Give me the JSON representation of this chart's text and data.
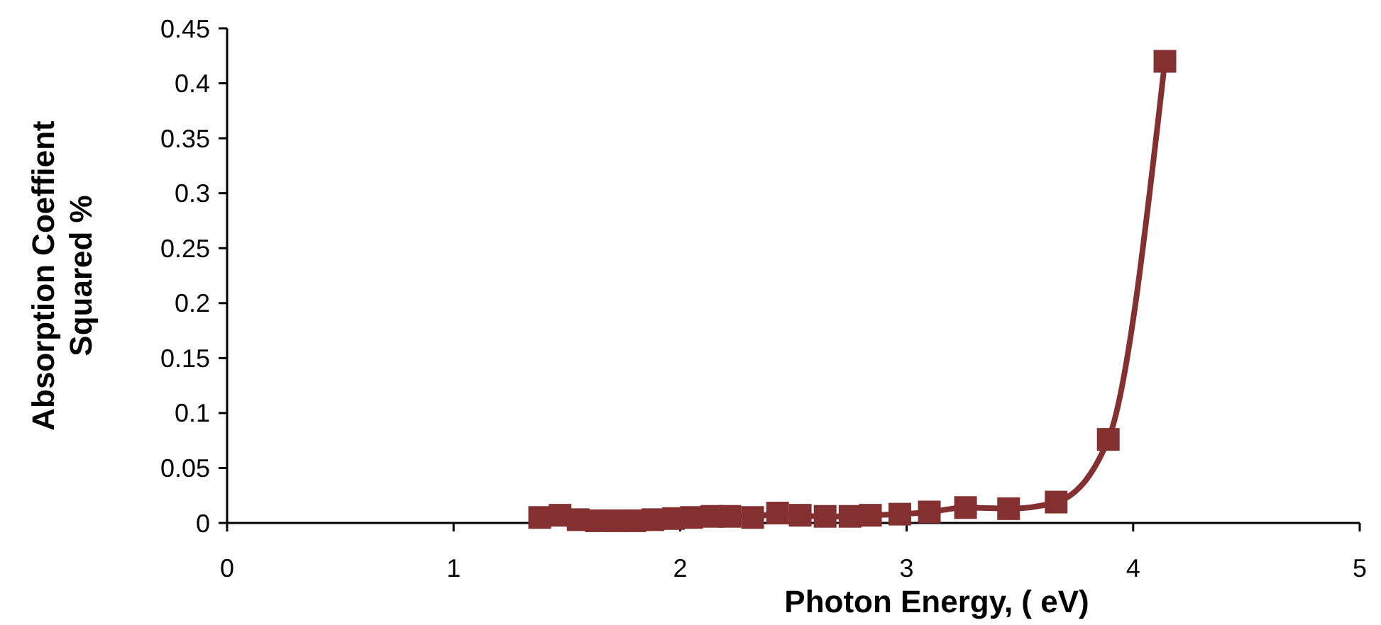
{
  "chart_data": {
    "type": "line",
    "xlabel": "Photon Energy, ( eV)",
    "ylabel": "Absorption Coeffient Squared %",
    "x": [
      1.38,
      1.47,
      1.55,
      1.63,
      1.72,
      1.8,
      1.88,
      1.97,
      2.05,
      2.14,
      2.22,
      2.32,
      2.43,
      2.53,
      2.64,
      2.75,
      2.84,
      2.97,
      3.1,
      3.26,
      3.45,
      3.66,
      3.89,
      4.14
    ],
    "series": [
      {
        "color": "#843030",
        "values": [
          0.005,
          0.007,
          0.003,
          0.002,
          0.002,
          0.002,
          0.003,
          0.004,
          0.005,
          0.006,
          0.006,
          0.005,
          0.009,
          0.007,
          0.006,
          0.006,
          0.007,
          0.008,
          0.01,
          0.014,
          0.013,
          0.019,
          0.076,
          0.42
        ]
      }
    ],
    "xlim": [
      0,
      5
    ],
    "xticks": [
      0,
      1,
      2,
      3,
      4,
      5
    ],
    "ylim": [
      0,
      0.45
    ],
    "yticks": [
      0,
      0.05,
      0.1,
      0.15,
      0.2,
      0.25,
      0.3,
      0.35,
      0.4,
      0.45
    ],
    "grid": false,
    "marker": "square",
    "line_style": "solid"
  }
}
